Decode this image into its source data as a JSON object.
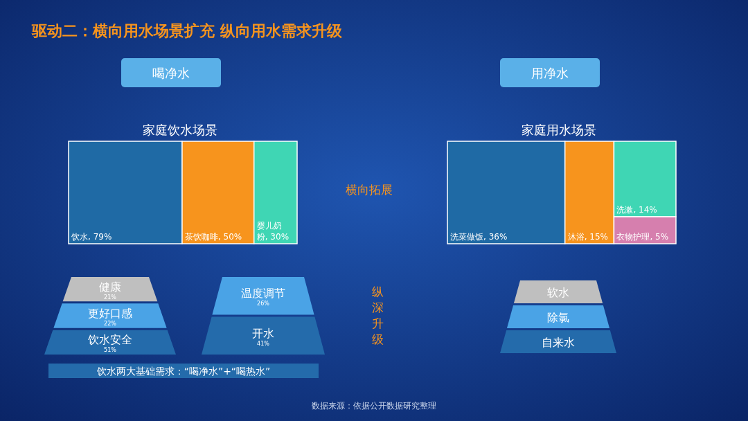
{
  "chart_data": [
    {
      "type": "other",
      "title": "驱动二：横向用水场景扩充 纵向用水需求升级",
      "annotations": [
        "横向拓展",
        "纵深升级",
        "饮水两大基础需求：“喝净水”+“喝热水”",
        "数据来源：依据公开数据研究整理"
      ]
    },
    {
      "type": "other",
      "title": "喝净水",
      "subtitle": "家庭饮水场景",
      "categories": [
        "饮水",
        "茶饮咖啡",
        "婴儿奶粉"
      ],
      "values": [
        79,
        50,
        30
      ],
      "value_labels": [
        ", 79%",
        ", 50%",
        ", 30%"
      ],
      "colors": [
        "#1f6aa5",
        "#f7941d",
        "#3fd6b4"
      ]
    },
    {
      "type": "other",
      "title": "用净水",
      "subtitle": "家庭用水场景",
      "categories": [
        "洗菜做饭",
        "沐浴",
        "洗漱",
        "衣物护理"
      ],
      "values": [
        36,
        15,
        14,
        5
      ],
      "value_labels": [
        ", 36%",
        ", 15%",
        ", 14%",
        ", 5%"
      ],
      "colors": [
        "#1f6aa5",
        "#f7941d",
        "#3fd6b4",
        "#d67fae"
      ]
    },
    {
      "type": "other",
      "categories": [
        "健康",
        "更好口感",
        "饮水安全"
      ],
      "value_labels": [
        "21%",
        "22%",
        "51%"
      ],
      "colors": [
        "#bfbfbf",
        "#4aa3e6",
        "#246bab"
      ]
    },
    {
      "type": "other",
      "categories": [
        "温度调节",
        "开水"
      ],
      "value_labels": [
        "26%",
        "41%"
      ],
      "colors": [
        "#4aa3e6",
        "#246bab"
      ]
    },
    {
      "type": "other",
      "categories": [
        "软水",
        "除氯",
        "自来水"
      ],
      "colors": [
        "#bfbfbf",
        "#4aa3e6",
        "#246bab"
      ]
    }
  ]
}
